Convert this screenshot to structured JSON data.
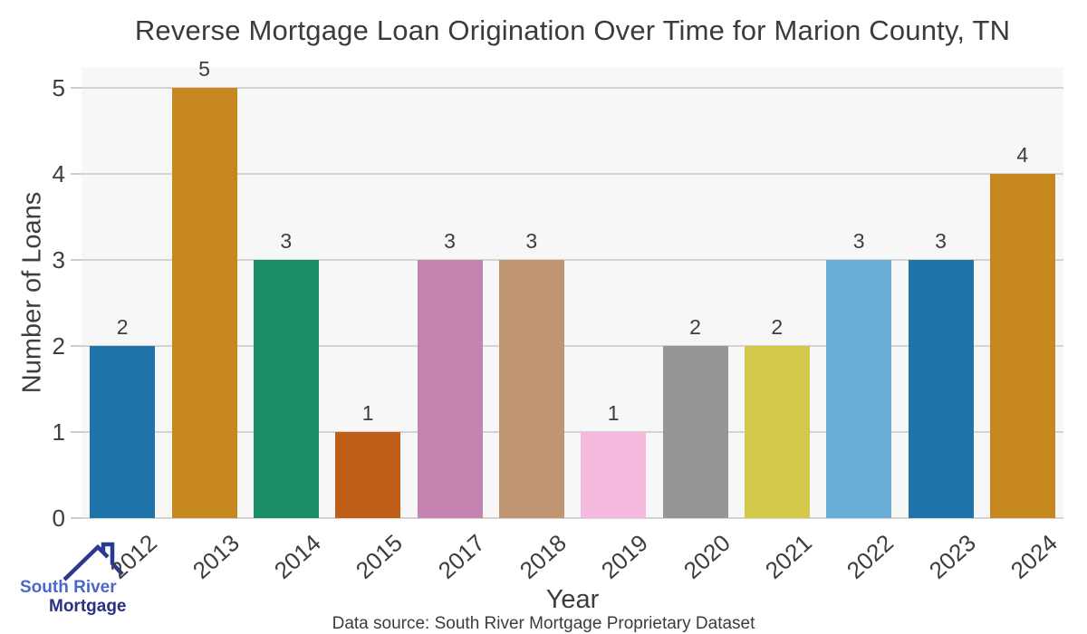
{
  "chart_data": {
    "type": "bar",
    "title": "Reverse Mortgage Loan Origination Over Time for Marion County, TN",
    "xlabel": "Year",
    "ylabel": "Number of Loans",
    "categories": [
      "2012",
      "2013",
      "2014",
      "2015",
      "2017",
      "2018",
      "2019",
      "2020",
      "2021",
      "2022",
      "2023",
      "2024"
    ],
    "values": [
      2,
      5,
      3,
      1,
      3,
      3,
      1,
      2,
      2,
      3,
      3,
      4
    ],
    "bar_colors": [
      "#1e73a8",
      "#c6871e",
      "#1b8e68",
      "#bf5e18",
      "#c583b1",
      "#c09572",
      "#f3bade",
      "#969696",
      "#d3c84a",
      "#68aed6",
      "#1e73a8",
      "#c6871e"
    ],
    "ylim": [
      0,
      5
    ],
    "yticks": [
      0,
      1,
      2,
      3,
      4,
      5
    ],
    "grid": true,
    "legend": "none",
    "plot_background": "#f7f7f7",
    "grid_color": "#d3d3d3"
  },
  "caption": {
    "text": "Data source: South River Mortgage Proprietary Dataset"
  },
  "logo": {
    "line1": "South River",
    "line2": "Mortgage",
    "line1_color": "#4b68c7",
    "line2_color": "#2a3180",
    "icon": "house-roof-icon",
    "icon_color": "#2b3a8e"
  }
}
